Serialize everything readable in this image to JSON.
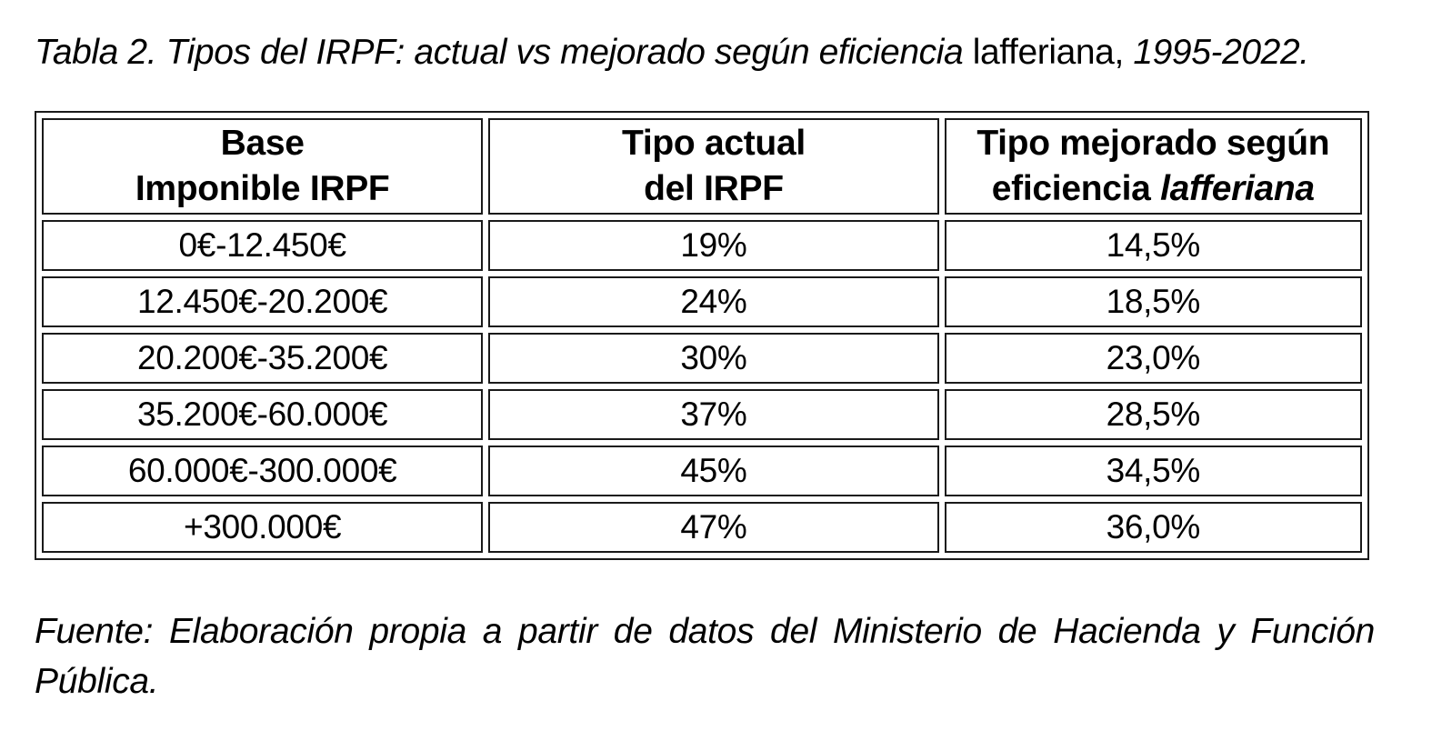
{
  "title": {
    "part1_italic": "Tabla 2. Tipos del IRPF: actual vs mejorado según eficiencia ",
    "part2_upright": "lafferiana,",
    "part3_italic": " 1995-2022."
  },
  "table": {
    "headers": {
      "base": {
        "line1": "Base",
        "line2": "Imponible IRPF"
      },
      "actual": {
        "line1": "Tipo actual",
        "line2": "del IRPF"
      },
      "mejorado": {
        "line1": "Tipo mejorado según",
        "line2_text": "eficiencia ",
        "line2_italic": "lafferiana"
      }
    },
    "rows": [
      {
        "base": "0€-12.450€",
        "actual": "19%",
        "mejorado": "14,5%"
      },
      {
        "base": "12.450€-20.200€",
        "actual": "24%",
        "mejorado": "18,5%"
      },
      {
        "base": "20.200€-35.200€",
        "actual": "30%",
        "mejorado": "23,0%"
      },
      {
        "base": "35.200€-60.000€",
        "actual": "37%",
        "mejorado": "28,5%"
      },
      {
        "base": "60.000€-300.000€",
        "actual": "45%",
        "mejorado": "34,5%"
      },
      {
        "base": "+300.000€",
        "actual": "47%",
        "mejorado": "36,0%"
      }
    ]
  },
  "source": {
    "line1": "Fuente: Elaboración propia a partir de datos del Ministerio de Hacienda y Función",
    "line2": "Pública."
  },
  "colors": {
    "text": "#000000",
    "border": "#1a1a1a",
    "background": "#ffffff"
  }
}
